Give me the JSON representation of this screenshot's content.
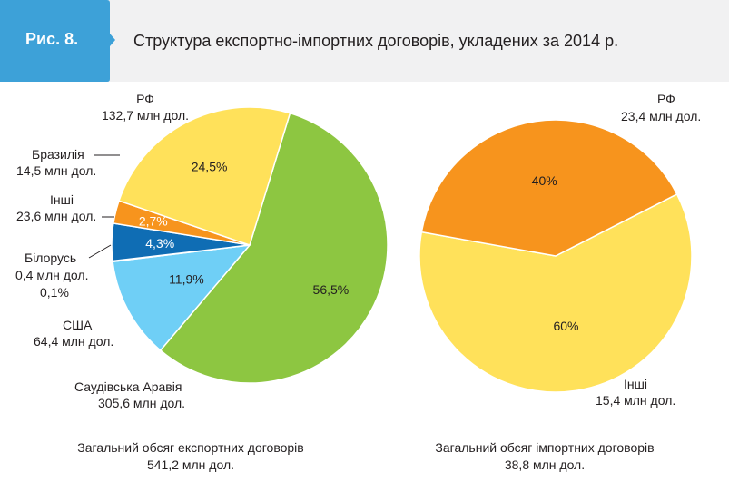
{
  "header": {
    "figure_label": "Рис. 8.",
    "title": "Структура експортно-імпортних договорів, укладених за 2014 р.",
    "badge_color": "#3da1d8"
  },
  "chart_data": [
    {
      "type": "pie",
      "caption_line1": "Загальний обсяг експортних договорів",
      "caption_line2": "541,2 млн дол.",
      "slices": [
        {
          "label": "Саудівська Аравія",
          "value_text": "305,6 млн дол.",
          "value": 305.6,
          "percent": 56.5,
          "percent_text": "56,5%",
          "color": "#8dc641"
        },
        {
          "label": "США",
          "value_text": "64,4 млн дол.",
          "value": 64.4,
          "percent": 11.9,
          "percent_text": "11,9%",
          "color": "#6fcff6"
        },
        {
          "label": "Білорусь",
          "value_text": "0,4 млн дол.",
          "value": 0.4,
          "percent": 0.1,
          "percent_text": "0,1%",
          "color": "#7f8a93"
        },
        {
          "label": "Інші",
          "value_text": "23,6 млн дол.",
          "value": 23.6,
          "percent": 4.3,
          "percent_text": "4,3%",
          "color": "#0f6db4"
        },
        {
          "label": "Бразилія",
          "value_text": "14,5 млн дол.",
          "value": 14.5,
          "percent": 2.7,
          "percent_text": "2,7%",
          "color": "#f7941d"
        },
        {
          "label": "РФ",
          "value_text": "132,7 млн дол.",
          "value": 132.7,
          "percent": 24.5,
          "percent_text": "24,5%",
          "color": "#ffe15a"
        }
      ]
    },
    {
      "type": "pie",
      "caption_line1": "Загальний обсяг імпортних договорів",
      "caption_line2": "38,8 млн дол.",
      "slices": [
        {
          "label": "РФ",
          "value_text": "23,4 млн дол.",
          "value": 23.4,
          "percent": 60,
          "percent_text": "60%",
          "color": "#ffe15a"
        },
        {
          "label": "Інші",
          "value_text": "15,4 млн дол.",
          "value": 15.4,
          "percent": 40,
          "percent_text": "40%",
          "color": "#f7941d"
        }
      ]
    }
  ]
}
